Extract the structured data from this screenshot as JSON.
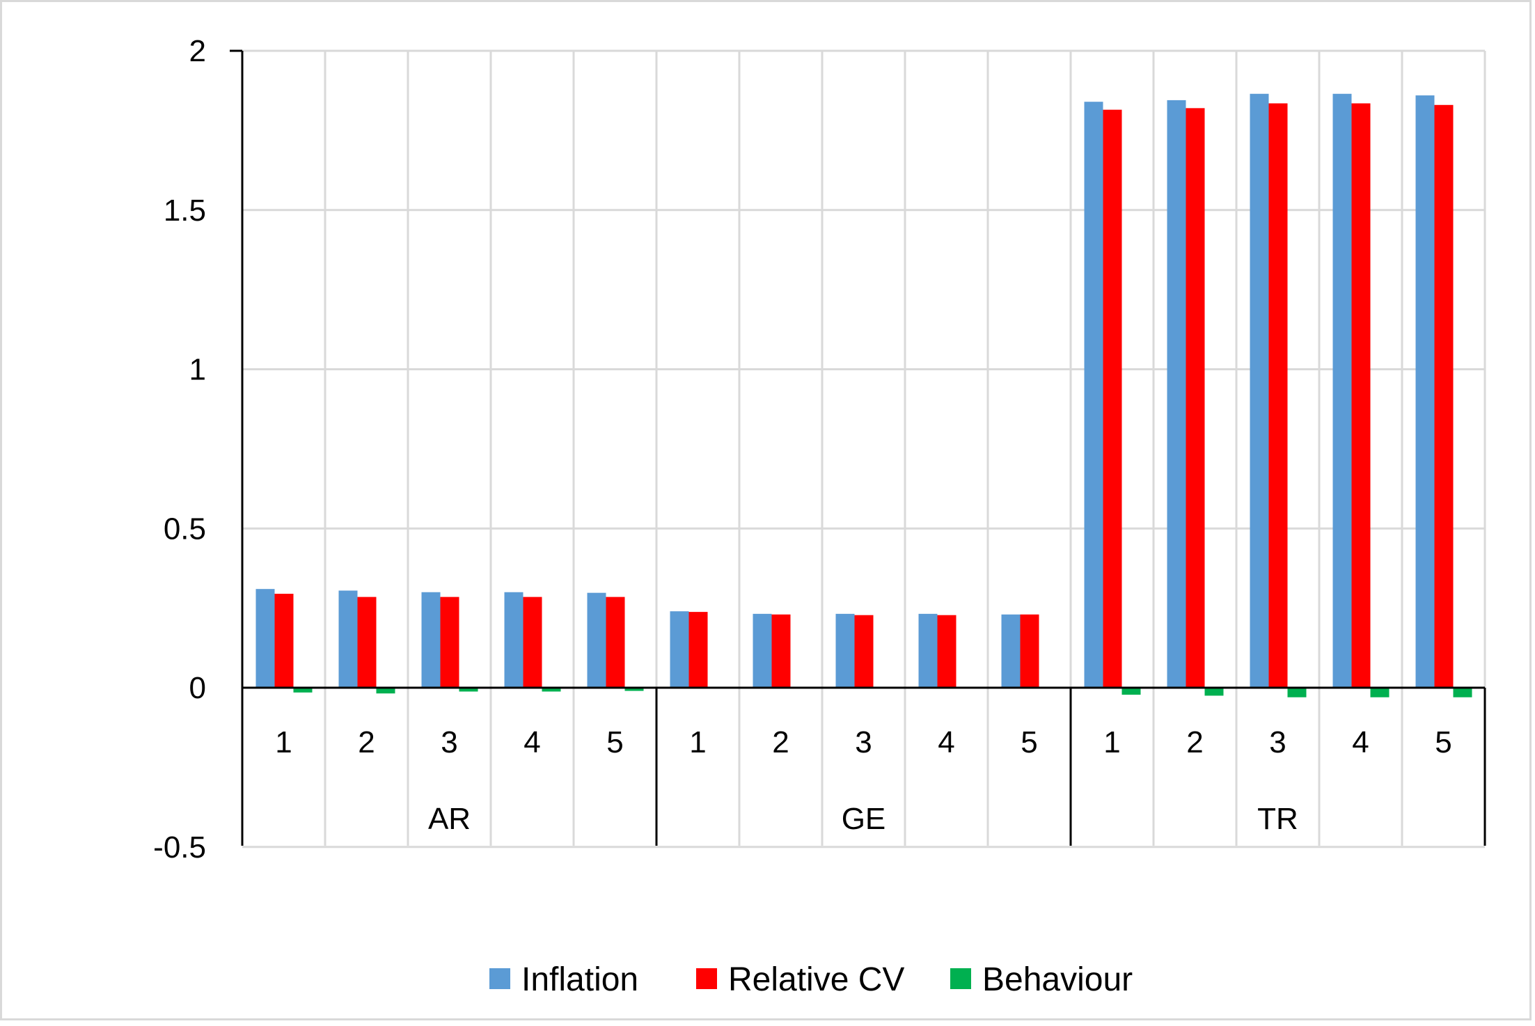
{
  "chart_data": {
    "type": "bar",
    "groups": [
      {
        "label": "AR",
        "categories": [
          "1",
          "2",
          "3",
          "4",
          "5"
        ]
      },
      {
        "label": "GE",
        "categories": [
          "1",
          "2",
          "3",
          "4",
          "5"
        ]
      },
      {
        "label": "TR",
        "categories": [
          "1",
          "2",
          "3",
          "4",
          "5"
        ]
      }
    ],
    "series": [
      {
        "name": "Inflation",
        "color": "#5b9bd5",
        "values": [
          0.31,
          0.305,
          0.3,
          0.3,
          0.298,
          0.24,
          0.232,
          0.232,
          0.232,
          0.23,
          1.84,
          1.845,
          1.865,
          1.865,
          1.86
        ]
      },
      {
        "name": "Relative CV",
        "color": "#ff0000",
        "values": [
          0.295,
          0.285,
          0.285,
          0.285,
          0.285,
          0.238,
          0.23,
          0.228,
          0.228,
          0.23,
          1.815,
          1.82,
          1.835,
          1.835,
          1.83
        ]
      },
      {
        "name": "Behaviour",
        "color": "#00b050",
        "values": [
          -0.015,
          -0.018,
          -0.012,
          -0.012,
          -0.01,
          0,
          0,
          0,
          0,
          0,
          -0.022,
          -0.025,
          -0.03,
          -0.03,
          -0.03
        ]
      }
    ],
    "ylim": [
      -0.5,
      2
    ],
    "yticks": [
      "2",
      "1.5",
      "1",
      "0.5",
      "0",
      "-0.5"
    ],
    "ytick_values": [
      2,
      1.5,
      1,
      0.5,
      0,
      -0.5
    ],
    "grid": true,
    "legend_position": "bottom",
    "title": "",
    "xlabel": "",
    "ylabel": ""
  }
}
